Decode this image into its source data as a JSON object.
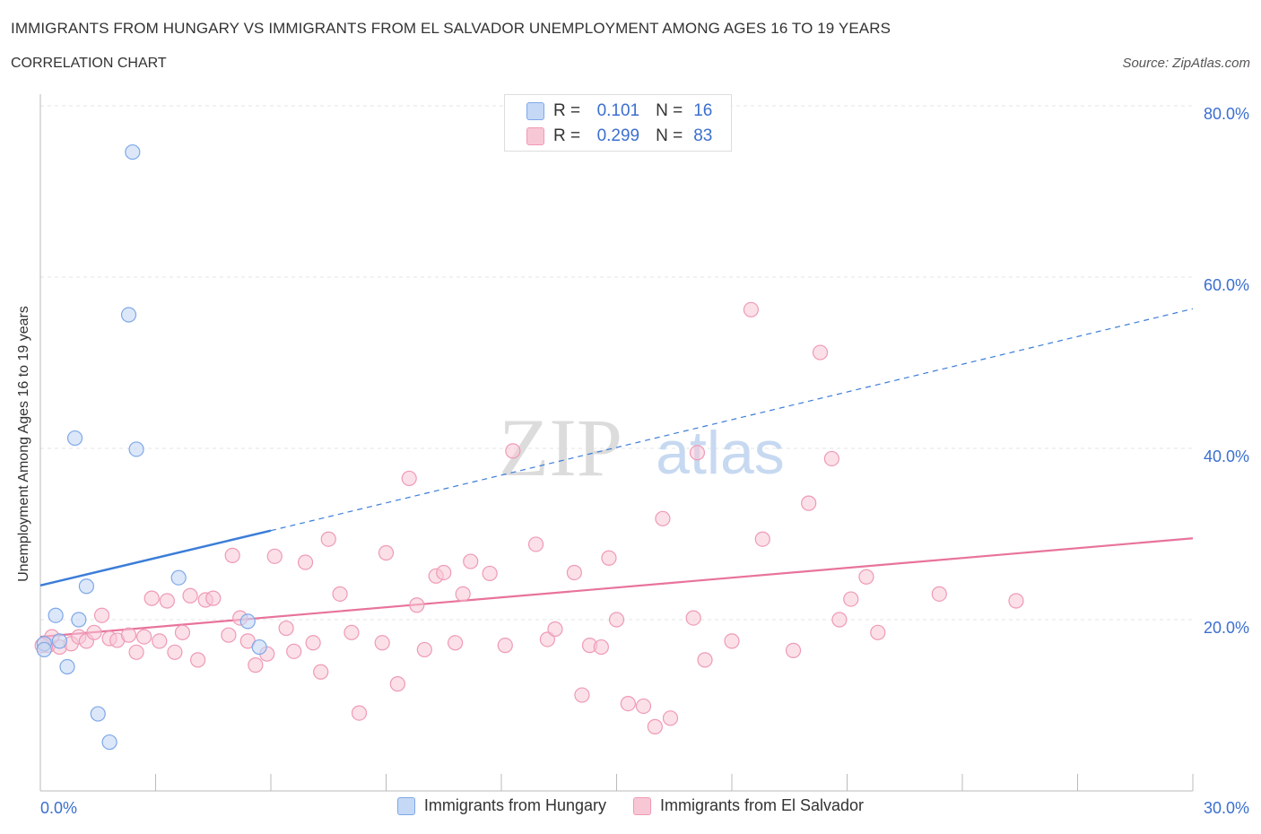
{
  "title": "IMMIGRANTS FROM HUNGARY VS IMMIGRANTS FROM EL SALVADOR UNEMPLOYMENT AMONG AGES 16 TO 19 YEARS",
  "subtitle": "CORRELATION CHART",
  "source": "Source: ZipAtlas.com",
  "watermark": {
    "zip": "ZIP",
    "atlas": "atlas"
  },
  "stats": {
    "r_label": "R =",
    "n_label": "N =",
    "hungary": {
      "r": "0.101",
      "n": "16"
    },
    "el_salvador": {
      "r": "0.299",
      "n": "83"
    }
  },
  "colors": {
    "hungary_fill": "#c5d8f5",
    "hungary_stroke": "#7ea8e8",
    "hungary_line": "#3b7dd8",
    "el_salvador_fill": "#f8c7d6",
    "el_salvador_stroke": "#ef9ab5",
    "el_salvador_line": "#e8739c",
    "tick_label": "#3b6fcf",
    "grid": "#e4e4e4"
  },
  "chart_data": {
    "type": "scatter",
    "title": "IMMIGRANTS FROM HUNGARY VS IMMIGRANTS FROM EL SALVADOR UNEMPLOYMENT AMONG AGES 16 TO 19 YEARS",
    "xlabel": "",
    "ylabel": "Unemployment Among Ages 16 to 19 years",
    "xlim": [
      0,
      30
    ],
    "ylim": [
      0,
      80
    ],
    "x_tick_labels": [
      "0.0%",
      "30.0%"
    ],
    "y_ticks": [
      20,
      40,
      60,
      80
    ],
    "y_tick_labels": [
      "20.0%",
      "40.0%",
      "60.0%",
      "80.0%"
    ],
    "legend": [
      "Immigrants from Hungary",
      "Immigrants from El Salvador"
    ],
    "series": [
      {
        "name": "Immigrants from Hungary",
        "points": [
          [
            0.1,
            17.2
          ],
          [
            0.1,
            16.5
          ],
          [
            0.4,
            20.5
          ],
          [
            0.5,
            17.5
          ],
          [
            0.7,
            14.5
          ],
          [
            0.9,
            41.2
          ],
          [
            1.0,
            20.0
          ],
          [
            1.2,
            23.9
          ],
          [
            1.5,
            9.0
          ],
          [
            1.8,
            5.7
          ],
          [
            2.3,
            55.6
          ],
          [
            2.4,
            74.6
          ],
          [
            2.5,
            39.9
          ],
          [
            3.6,
            24.9
          ],
          [
            5.4,
            19.8
          ],
          [
            5.7,
            16.8
          ]
        ],
        "trend": {
          "x": [
            0,
            6.0
          ],
          "y": [
            24.0,
            30.4
          ],
          "dashed_extension_to": [
            30,
            56.3
          ]
        }
      },
      {
        "name": "Immigrants from El Salvador",
        "points": [
          [
            0.2,
            17.0
          ],
          [
            0.3,
            18.0
          ],
          [
            0.5,
            16.8
          ],
          [
            0.8,
            17.2
          ],
          [
            1.0,
            18.0
          ],
          [
            1.2,
            17.5
          ],
          [
            1.4,
            18.5
          ],
          [
            1.6,
            20.5
          ],
          [
            1.8,
            17.8
          ],
          [
            2.0,
            17.6
          ],
          [
            2.3,
            18.2
          ],
          [
            2.5,
            16.2
          ],
          [
            2.7,
            18.0
          ],
          [
            2.9,
            22.5
          ],
          [
            3.1,
            17.5
          ],
          [
            3.3,
            22.2
          ],
          [
            3.5,
            16.2
          ],
          [
            3.7,
            18.5
          ],
          [
            3.9,
            22.8
          ],
          [
            4.1,
            15.3
          ],
          [
            4.3,
            22.3
          ],
          [
            4.5,
            22.5
          ],
          [
            4.9,
            18.2
          ],
          [
            5.0,
            27.5
          ],
          [
            5.2,
            20.2
          ],
          [
            5.4,
            17.5
          ],
          [
            5.6,
            14.7
          ],
          [
            5.9,
            16.0
          ],
          [
            6.1,
            27.4
          ],
          [
            6.4,
            19.0
          ],
          [
            6.6,
            16.3
          ],
          [
            6.9,
            26.7
          ],
          [
            7.1,
            17.3
          ],
          [
            7.3,
            13.9
          ],
          [
            7.5,
            29.4
          ],
          [
            7.8,
            23.0
          ],
          [
            8.1,
            18.5
          ],
          [
            8.3,
            9.1
          ],
          [
            8.9,
            17.3
          ],
          [
            9.0,
            27.8
          ],
          [
            9.3,
            12.5
          ],
          [
            9.6,
            36.5
          ],
          [
            9.8,
            21.7
          ],
          [
            10.0,
            16.5
          ],
          [
            10.3,
            25.1
          ],
          [
            10.5,
            25.5
          ],
          [
            10.8,
            17.3
          ],
          [
            11.0,
            23.0
          ],
          [
            11.2,
            26.8
          ],
          [
            11.7,
            25.4
          ],
          [
            12.1,
            17.0
          ],
          [
            12.3,
            39.7
          ],
          [
            12.9,
            28.8
          ],
          [
            13.2,
            17.7
          ],
          [
            13.4,
            18.9
          ],
          [
            13.9,
            25.5
          ],
          [
            14.1,
            11.2
          ],
          [
            14.3,
            17.0
          ],
          [
            14.6,
            16.8
          ],
          [
            14.8,
            27.2
          ],
          [
            15.0,
            20.0
          ],
          [
            15.3,
            10.2
          ],
          [
            15.7,
            9.9
          ],
          [
            16.0,
            7.5
          ],
          [
            16.2,
            31.8
          ],
          [
            16.4,
            8.5
          ],
          [
            17.0,
            20.2
          ],
          [
            17.1,
            39.5
          ],
          [
            17.3,
            15.3
          ],
          [
            18.0,
            17.5
          ],
          [
            18.5,
            56.2
          ],
          [
            18.8,
            29.4
          ],
          [
            19.6,
            16.4
          ],
          [
            20.0,
            33.6
          ],
          [
            20.3,
            51.2
          ],
          [
            20.6,
            38.8
          ],
          [
            20.8,
            20.0
          ],
          [
            21.1,
            22.4
          ],
          [
            21.5,
            25.0
          ],
          [
            21.8,
            18.5
          ],
          [
            23.4,
            23.0
          ],
          [
            25.4,
            22.2
          ],
          [
            0.05,
            17.0
          ]
        ],
        "trend": {
          "x": [
            0,
            30
          ],
          "y": [
            18.0,
            29.5
          ]
        }
      }
    ]
  }
}
